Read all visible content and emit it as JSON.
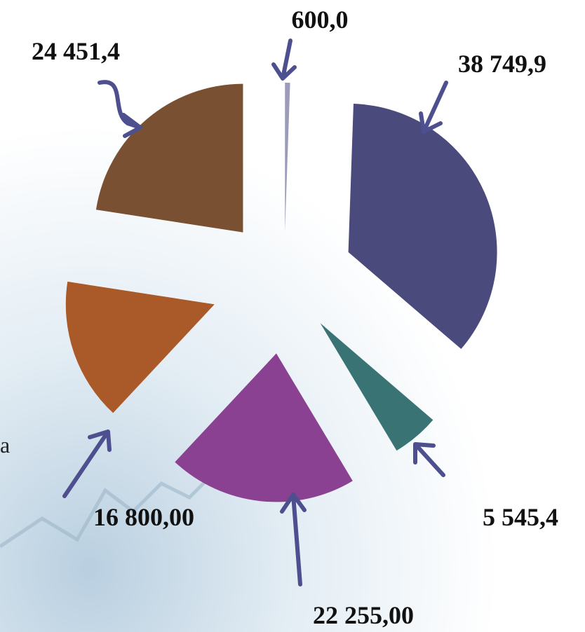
{
  "chart_data": {
    "type": "pie",
    "categories": [
      null,
      null,
      null,
      null,
      null,
      null
    ],
    "values": [
      600.0,
      38749.9,
      5545.4,
      22255.0,
      16800.0,
      24451.4
    ],
    "value_labels": [
      "600,0",
      "38 749,9",
      "5 545,4",
      "22 255,00",
      "16 800,00",
      "24 451,4"
    ],
    "colors": [
      "#9c9cba",
      "#4a4a7c",
      "#3a7373",
      "#8b4191",
      "#a95a28",
      "#7a5033"
    ]
  },
  "side_text": "a"
}
